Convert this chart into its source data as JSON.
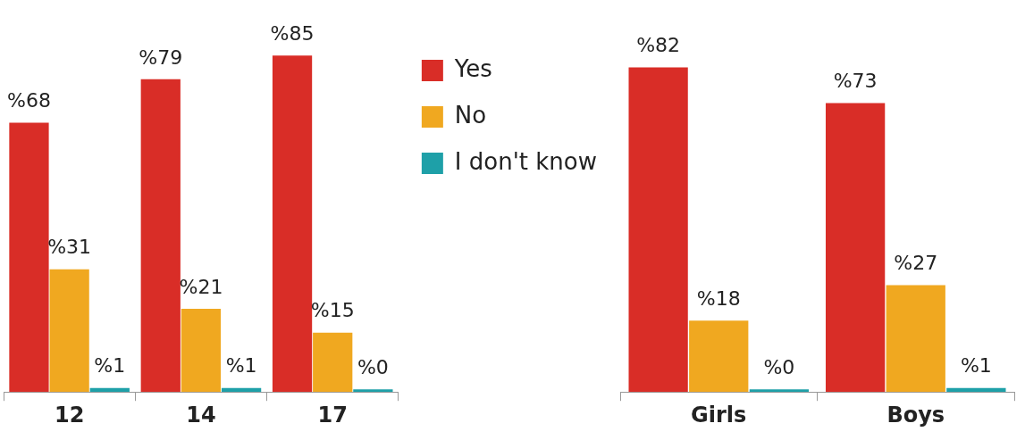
{
  "chart_data": [
    {
      "type": "bar",
      "categories": [
        "12",
        "14",
        "17"
      ],
      "legend": "right",
      "series": [
        {
          "name": "Yes",
          "color": "#d92d27",
          "values": [
            68,
            79,
            85
          ],
          "value_labels": [
            "%68",
            "%79",
            "%85"
          ]
        },
        {
          "name": "No",
          "color": "#f0a820",
          "values": [
            31,
            21,
            15
          ],
          "value_labels": [
            "%31",
            "%21",
            "%15"
          ]
        },
        {
          "name": "I don't know",
          "color": "#1ea0a8",
          "values": [
            1,
            1,
            0
          ],
          "value_labels": [
            "%1",
            "%1",
            "%0"
          ]
        }
      ]
    },
    {
      "type": "bar",
      "categories": [
        "Girls",
        "Boys"
      ],
      "legend": false,
      "series": [
        {
          "color": "#d92d27",
          "values": [
            82,
            73
          ],
          "value_labels": [
            "%82",
            "%73"
          ]
        },
        {
          "color": "#f0a820",
          "values": [
            18,
            27
          ],
          "value_labels": [
            "%18",
            "%27"
          ]
        },
        {
          "color": "#1ea0a8",
          "values": [
            0,
            1
          ],
          "value_labels": [
            "%0",
            "%1"
          ]
        }
      ]
    }
  ]
}
